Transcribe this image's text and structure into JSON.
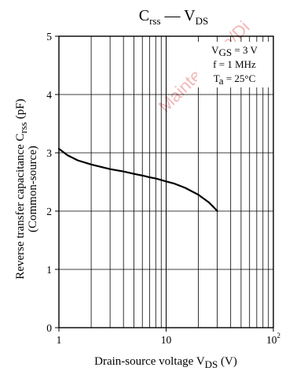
{
  "watermark": {
    "text": "Maintenance/Di",
    "color": "#f2b8b8"
  },
  "chart_data": {
    "type": "line",
    "title": {
      "main": "C",
      "main_sub": "rss",
      "sep": " — ",
      "sym": "V",
      "sym_sub": "DS"
    },
    "xlabel": {
      "pre": "Drain-source voltage  ",
      "sym": "V",
      "sub": "DS",
      "post": "  (V)"
    },
    "ylabel": {
      "line1_pre": "Reverse transfer capacitance  ",
      "line1_sym": "C",
      "line1_sub": "rss",
      "line1_post": "  (pF)",
      "line2": "(Common-source)"
    },
    "x_scale": "log",
    "xlim": [
      1,
      100
    ],
    "ylim": [
      0,
      5
    ],
    "x_ticks": [
      {
        "value": 1,
        "base": "1",
        "exp": ""
      },
      {
        "value": 10,
        "base": "10",
        "exp": ""
      },
      {
        "value": 100,
        "base": "10",
        "exp": "2"
      }
    ],
    "y_ticks": [
      {
        "value": 0,
        "label": "0"
      },
      {
        "value": 1,
        "label": "1"
      },
      {
        "value": 2,
        "label": "2"
      },
      {
        "value": 3,
        "label": "3"
      },
      {
        "value": 4,
        "label": "4"
      },
      {
        "value": 5,
        "label": "5"
      }
    ],
    "grid": true,
    "conditions": [
      {
        "sym": "V",
        "sub": "GS",
        "rest": " = 3 V"
      },
      {
        "sym": "f",
        "sub": "",
        "rest": " = 1 MHz"
      },
      {
        "sym": "T",
        "sub": "a",
        "rest": " = 25°C"
      }
    ],
    "legend_position": "top-right",
    "series": [
      {
        "color": "#000000",
        "points": [
          [
            1,
            3.07
          ],
          [
            1.2,
            2.96
          ],
          [
            1.5,
            2.87
          ],
          [
            2,
            2.8
          ],
          [
            3,
            2.72
          ],
          [
            4,
            2.68
          ],
          [
            5,
            2.64
          ],
          [
            6,
            2.61
          ],
          [
            7,
            2.58
          ],
          [
            8,
            2.56
          ],
          [
            10,
            2.51
          ],
          [
            12,
            2.47
          ],
          [
            15,
            2.4
          ],
          [
            20,
            2.28
          ],
          [
            25,
            2.15
          ],
          [
            28,
            2.06
          ],
          [
            30,
            2.0
          ]
        ]
      }
    ]
  }
}
